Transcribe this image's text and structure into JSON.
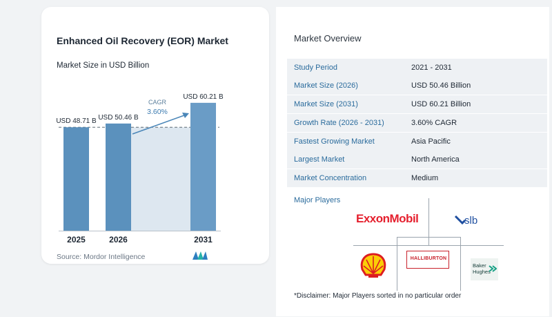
{
  "chart_card": {
    "title": "Enhanced Oil Recovery (EOR) Market",
    "subtitle": "Market Size in USD Billion",
    "source": "Source: Mordor Intelligence",
    "cagr_label": "CAGR",
    "cagr_value": "3.60%"
  },
  "chart_data": {
    "type": "bar",
    "categories": [
      "2025",
      "2026",
      "2031"
    ],
    "values": [
      48.71,
      50.46,
      60.21
    ],
    "data_labels": [
      "USD 48.71 B",
      "USD 50.46 B",
      "USD 60.21 B"
    ],
    "ylabel": "Market Size in USD Billion",
    "ylim": [
      0,
      67
    ],
    "grid": false,
    "colors": {
      "bar": "#5b91bd",
      "bar_highlight": "#6a9cc6",
      "band": "#dde7f0",
      "arrow": "#4a86b8"
    }
  },
  "overview": {
    "title": "Market Overview",
    "rows": [
      {
        "key": "Study Period",
        "value": "2021 - 2031"
      },
      {
        "key": "Market Size (2026)",
        "value": "USD 50.46 Billion"
      },
      {
        "key": "Market Size (2031)",
        "value": "USD 60.21 Billion"
      },
      {
        "key": "Growth Rate (2026 - 2031)",
        "value": "3.60% CAGR"
      },
      {
        "key": "Fastest Growing Market",
        "value": "Asia Pacific"
      },
      {
        "key": "Largest Market",
        "value": "North America"
      },
      {
        "key": "Market Concentration",
        "value": "Medium"
      }
    ]
  },
  "players": {
    "title": "Major Players",
    "logos": [
      {
        "name": "ExxonMobil",
        "text": "ExxonMobil",
        "icon": "exxonmobil-logo"
      },
      {
        "name": "SLB",
        "text": "slb",
        "icon": "slb-logo"
      },
      {
        "name": "Shell",
        "text": "",
        "icon": "shell-logo"
      },
      {
        "name": "Halliburton",
        "text": "HALLIBURTON",
        "icon": "halliburton-logo"
      },
      {
        "name": "Baker Hughes",
        "text": "Baker Hughes",
        "icon": "baker-hughes-logo"
      }
    ],
    "disclaimer": "*Disclaimer: Major Players sorted in no particular order"
  }
}
